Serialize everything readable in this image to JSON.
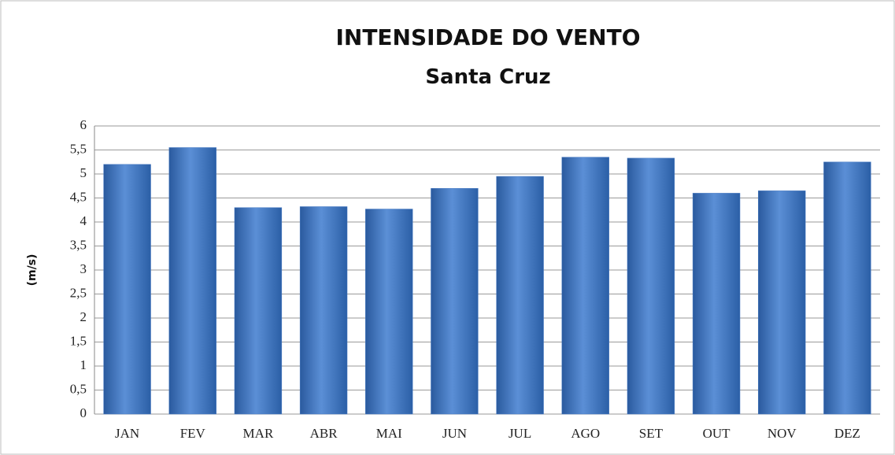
{
  "chart_data": {
    "type": "bar",
    "title": "INTENSIDADE DO VENTO",
    "subtitle": "Santa Cruz",
    "y_label": "(m/s)",
    "categories": [
      "JAN",
      "FEV",
      "MAR",
      "ABR",
      "MAI",
      "JUN",
      "JUL",
      "AGO",
      "SET",
      "OUT",
      "NOV",
      "DEZ"
    ],
    "values": [
      5.2,
      5.55,
      4.3,
      4.32,
      4.27,
      4.7,
      4.95,
      5.35,
      5.33,
      4.6,
      4.65,
      5.25
    ],
    "color": "#4a7cc4",
    "ylim": [
      0,
      6
    ],
    "yticks": [
      0,
      {
        "value": 0.5,
        "label": "0,5"
      },
      1,
      {
        "value": 1.5,
        "label": "1,5"
      },
      2,
      {
        "value": 2.5,
        "label": "2,5"
      },
      3,
      {
        "value": 3.5,
        "label": "3,5"
      },
      4,
      {
        "value": 4.5,
        "label": "4,5"
      },
      5,
      {
        "value": 5.5,
        "label": "5,5"
      },
      6
    ],
    "grid": true
  }
}
